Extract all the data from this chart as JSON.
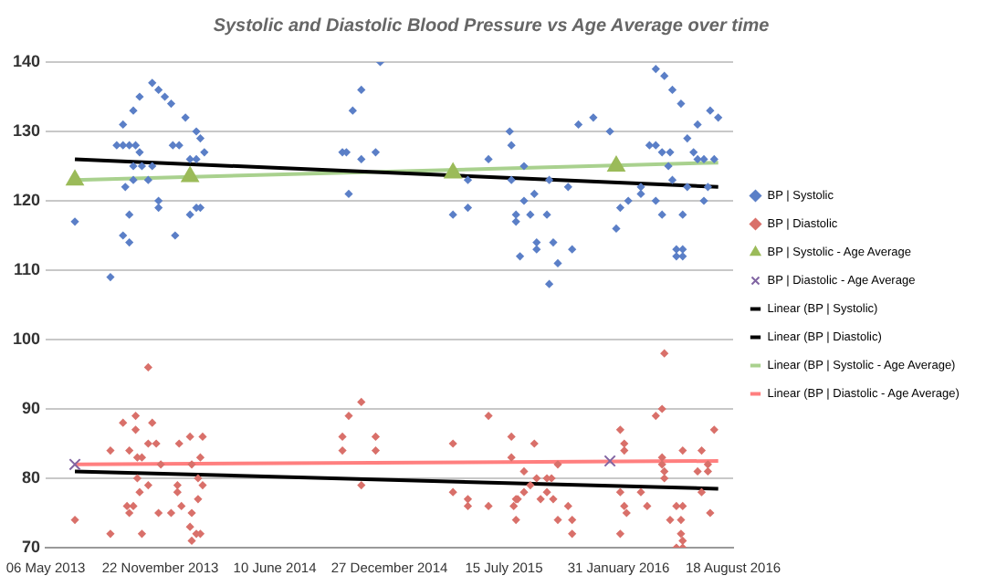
{
  "chart_data": {
    "type": "scatter",
    "title": "Systolic and Diastolic Blood Pressure vs Age Average over time",
    "xlim": [
      "2013-05-06",
      "2016-08-18"
    ],
    "xticks": [
      {
        "value": "2013-05-06",
        "label": "06 May 2013"
      },
      {
        "value": "2013-11-22",
        "label": "22 November 2013"
      },
      {
        "value": "2014-06-10",
        "label": "10 June 2014"
      },
      {
        "value": "2014-12-27",
        "label": "27 December 2014"
      },
      {
        "value": "2015-07-15",
        "label": "15 July 2015"
      },
      {
        "value": "2016-01-31",
        "label": "31 January 2016"
      },
      {
        "value": "2016-08-18",
        "label": "18 August 2016"
      }
    ],
    "ylim": [
      70,
      140
    ],
    "yticks": [
      70,
      80,
      90,
      100,
      110,
      120,
      130,
      140
    ],
    "grid": "y",
    "legend": "right",
    "series": [
      {
        "name": "BP | Systolic",
        "type": "scatter",
        "marker": "diamond",
        "color": "#5b7fc7",
        "x": [
          "2013-06-26",
          "2013-08-27",
          "2013-09-07",
          "2013-09-18",
          "2013-09-29",
          "2013-10-10",
          "2013-10-17",
          "2013-09-22",
          "2013-09-29",
          "2013-09-18",
          "2013-09-29",
          "2013-10-06",
          "2013-10-21",
          "2013-11-08",
          "2013-10-06",
          "2013-11-01",
          "2013-11-19",
          "2013-11-19",
          "2013-12-14",
          "2013-12-25",
          "2013-12-18",
          "2014-01-13",
          "2014-01-24",
          "2014-01-31",
          "2014-01-13",
          "2014-01-24",
          "2014-02-07",
          "2014-01-31",
          "2014-10-06",
          "2014-10-13",
          "2014-10-17",
          "2014-11-08",
          "2014-12-03",
          "2015-06-18",
          "2015-07-28",
          "2015-08-19",
          "2015-05-13",
          "2015-07-28",
          "2015-05-13",
          "2015-04-17",
          "2015-08-19",
          "2015-09-06",
          "2015-08-05",
          "2015-08-05",
          "2015-08-30",
          "2015-09-28",
          "2015-10-02",
          "2015-11-04",
          "2015-09-10",
          "2015-09-10",
          "2015-10-09",
          "2015-08-12",
          "2015-11-11",
          "2015-10-17",
          "2015-10-02",
          "2016-01-27",
          "2016-02-03",
          "2016-02-17",
          "2016-03-10",
          "2016-03-10",
          "2016-04-05",
          "2016-04-16",
          "2016-05-22",
          "2016-05-04",
          "2016-05-30",
          "2016-07-05",
          "2016-06-28",
          "2016-05-11",
          "2016-05-22",
          "2016-05-11",
          "2016-05-22",
          "2016-04-27",
          "2016-03-25",
          "2016-04-05",
          "2016-04-16",
          "2016-04-30",
          "2016-06-10",
          "2016-06-17",
          "2016-06-28",
          "2016-07-16",
          "2016-05-30",
          "2013-09-18",
          "2013-10-06",
          "2013-10-17",
          "2013-11-08",
          "2013-11-19",
          "2013-12-11",
          "2014-01-05",
          "2014-01-24",
          "2013-11-30",
          "2014-10-24",
          "2014-11-08",
          "2014-12-11",
          "2015-07-25",
          "2015-11-22",
          "2015-12-18",
          "2016-01-16",
          "2016-04-05",
          "2016-04-20",
          "2016-05-04",
          "2016-05-19",
          "2016-06-17",
          "2016-07-09",
          "2016-07-23"
        ],
        "values": [
          117,
          109,
          128,
          128,
          128,
          128,
          127,
          122,
          118,
          115,
          114,
          125,
          125,
          125,
          123,
          123,
          120,
          119,
          128,
          128,
          115,
          118,
          119,
          119,
          126,
          126,
          127,
          129,
          127,
          127,
          121,
          126,
          127,
          126,
          128,
          125,
          123,
          123,
          119,
          118,
          120,
          121,
          118,
          117,
          118,
          118,
          123,
          122,
          114,
          113,
          114,
          112,
          113,
          111,
          108,
          116,
          119,
          120,
          122,
          121,
          120,
          118,
          118,
          123,
          122,
          122,
          120,
          113,
          113,
          112,
          112,
          125,
          128,
          128,
          127,
          127,
          127,
          126,
          126,
          126,
          129,
          131,
          133,
          135,
          137,
          136,
          134,
          132,
          130,
          135,
          133,
          136,
          140,
          130,
          131,
          132,
          130,
          139,
          138,
          136,
          134,
          131,
          133,
          132
        ]
      },
      {
        "name": "BP | Diastolic",
        "type": "scatter",
        "marker": "diamond",
        "color": "#d9706a",
        "x": [
          "2013-06-26",
          "2013-08-27",
          "2013-08-27",
          "2013-09-18",
          "2013-10-10",
          "2013-10-10",
          "2013-11-01",
          "2013-11-15",
          "2013-11-08",
          "2013-09-29",
          "2013-10-21",
          "2013-10-13",
          "2013-09-25",
          "2013-10-06",
          "2013-09-29",
          "2013-10-17",
          "2013-11-01",
          "2013-10-13",
          "2013-10-21",
          "2013-11-19",
          "2013-12-11",
          "2013-11-23",
          "2013-12-25",
          "2014-01-13",
          "2014-02-04",
          "2013-12-22",
          "2013-12-22",
          "2013-12-29",
          "2014-01-16",
          "2014-01-16",
          "2014-01-27",
          "2014-01-31",
          "2014-02-04",
          "2014-01-13",
          "2014-01-24",
          "2014-01-31",
          "2014-01-16",
          "2014-01-27",
          "2014-10-06",
          "2014-10-06",
          "2014-10-17",
          "2014-11-08",
          "2014-11-08",
          "2014-12-03",
          "2014-12-03",
          "2015-04-17",
          "2015-06-18",
          "2015-04-17",
          "2015-05-13",
          "2015-05-13",
          "2015-06-18",
          "2015-07-28",
          "2015-07-28",
          "2015-09-06",
          "2015-08-19",
          "2015-08-05",
          "2015-08-19",
          "2015-08-30",
          "2015-08-01",
          "2015-08-08",
          "2015-08-05",
          "2015-09-10",
          "2015-09-28",
          "2015-10-06",
          "2015-09-17",
          "2015-09-28",
          "2015-10-09",
          "2015-10-17",
          "2015-10-17",
          "2015-11-04",
          "2015-11-11",
          "2015-11-11",
          "2016-02-03",
          "2016-02-10",
          "2016-02-10",
          "2016-02-03",
          "2016-02-03",
          "2016-02-10",
          "2016-02-14",
          "2016-03-10",
          "2016-03-21",
          "2016-04-05",
          "2016-04-16",
          "2016-04-16",
          "2016-04-16",
          "2016-04-20",
          "2016-04-20",
          "2016-05-22",
          "2016-05-11",
          "2016-05-22",
          "2016-04-30",
          "2016-05-19",
          "2016-05-19",
          "2016-05-22",
          "2016-05-22",
          "2016-05-11",
          "2016-06-17",
          "2016-07-05",
          "2016-07-05",
          "2016-06-24",
          "2016-07-16",
          "2016-07-09",
          "2016-06-24",
          "2013-11-01",
          "2016-04-20"
        ],
        "values": [
          74,
          72,
          84,
          88,
          89,
          87,
          85,
          85,
          88,
          84,
          83,
          83,
          76,
          76,
          75,
          78,
          79,
          80,
          72,
          75,
          75,
          82,
          85,
          86,
          86,
          79,
          78,
          76,
          75,
          82,
          80,
          83,
          79,
          73,
          72,
          72,
          71,
          77,
          86,
          84,
          89,
          91,
          79,
          86,
          84,
          85,
          89,
          78,
          77,
          76,
          76,
          86,
          83,
          85,
          81,
          77,
          78,
          79,
          76,
          77,
          74,
          80,
          80,
          80,
          77,
          78,
          77,
          74,
          82,
          76,
          74,
          72,
          87,
          85,
          84,
          78,
          72,
          76,
          75,
          78,
          76,
          89,
          90,
          83,
          82,
          81,
          80,
          84,
          76,
          76,
          74,
          74,
          72,
          71,
          70,
          70,
          81,
          81,
          82,
          84,
          87,
          75,
          78,
          96,
          98
        ]
      },
      {
        "name": "BP | Systolic - Age Average",
        "type": "scatter",
        "marker": "triangle",
        "color": "#9bbb59",
        "x": [
          "2013-06-26",
          "2014-01-13",
          "2015-04-17",
          "2016-01-27"
        ],
        "values": [
          123,
          123.5,
          124,
          125
        ]
      },
      {
        "name": "BP | Diastolic - Age Average",
        "type": "scatter",
        "marker": "cross",
        "color": "#8064a2",
        "x": [
          "2013-06-26",
          "2016-01-16"
        ],
        "values": [
          82,
          82.5
        ]
      },
      {
        "name": "Linear (BP | Systolic)",
        "type": "line",
        "marker": "none",
        "color": "#000000",
        "x": [
          "2013-06-26",
          "2016-07-23"
        ],
        "values": [
          126,
          122
        ]
      },
      {
        "name": "Linear (BP | Diastolic)",
        "type": "line",
        "marker": "none",
        "color": "#000000",
        "x": [
          "2013-06-26",
          "2016-07-23"
        ],
        "values": [
          81,
          78.5
        ]
      },
      {
        "name": "Linear (BP | Systolic - Age Average)",
        "type": "line",
        "marker": "none",
        "color": "#a9d18e",
        "x": [
          "2013-06-26",
          "2016-07-23"
        ],
        "values": [
          123,
          125.5
        ]
      },
      {
        "name": "Linear (BP | Diastolic - Age Average)",
        "type": "line",
        "marker": "none",
        "color": "#ff7f7f",
        "x": [
          "2013-06-26",
          "2016-07-23"
        ],
        "values": [
          82,
          82.5
        ]
      }
    ]
  }
}
